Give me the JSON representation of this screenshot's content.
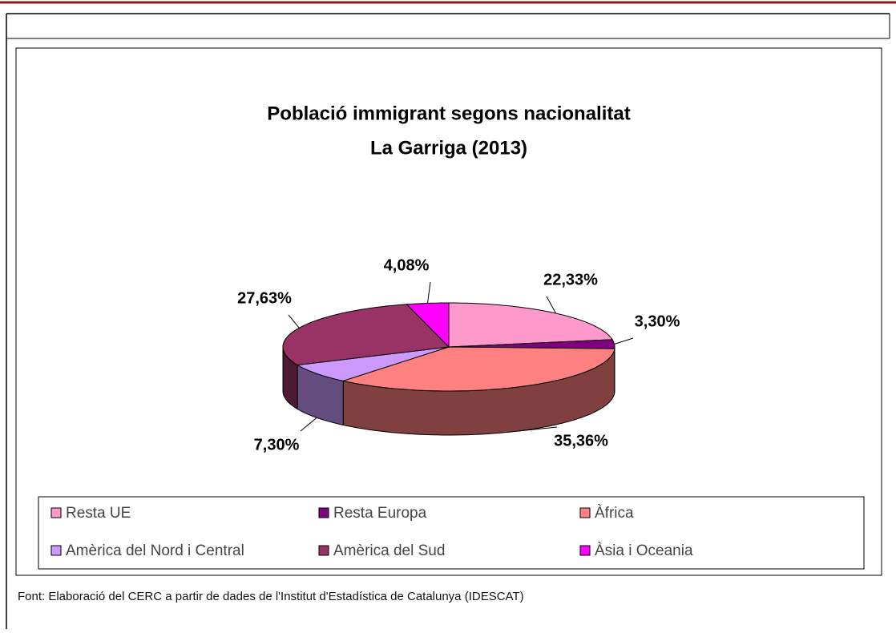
{
  "chart_data": {
    "type": "pie3d",
    "title": "Població immigrant segons nacionalitat",
    "subtitle": "La Garriga (2013)",
    "categories": [
      "Resta UE",
      "Resta Europa",
      "Àfrica",
      "Amèrica del Nord i Central",
      "Amèrica del Sud",
      "Àsia i Oceania"
    ],
    "values": [
      22.33,
      3.3,
      35.36,
      7.3,
      27.63,
      4.08
    ],
    "value_labels": [
      "22,33%",
      "3,30%",
      "35,36%",
      "7,30%",
      "27,63%",
      "4,08%"
    ],
    "colors": [
      "#ff99cc",
      "#800080",
      "#ff8080",
      "#cc99ff",
      "#993366",
      "#ff00ff"
    ],
    "legend": "bottom",
    "note": "Font: Elaboració del CERC a partir de dades de l'Institut d'Estadística de Catalunya (IDESCAT)"
  }
}
